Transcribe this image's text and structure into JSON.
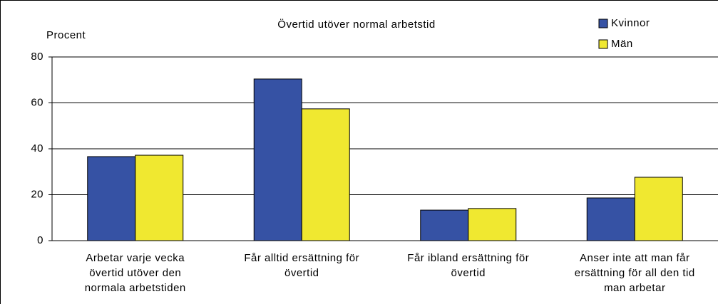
{
  "chart_data": {
    "type": "bar",
    "title": "Övertid utöver normal arbetstid",
    "y_label": "Procent",
    "categories": [
      "Arbetar varje vecka\növertid utöver den\nnormala arbetstiden",
      "Får alltid  ersättning för\növertid",
      "Får ibland ersättning för\növertid",
      "Anser inte att man får\nersättning för all den tid\nman arbetar"
    ],
    "series": [
      {
        "name": "Kvinnor",
        "color": "#3652a4",
        "values": [
          36.6,
          70.4,
          13.3,
          18.6
        ]
      },
      {
        "name": "Män",
        "color": "#f0e830",
        "values": [
          37.2,
          57.4,
          14,
          27.6
        ]
      }
    ],
    "ylim": [
      0,
      80
    ],
    "yticks": [
      0,
      20,
      40,
      60,
      80
    ],
    "grid": true,
    "legend": "top-right"
  }
}
